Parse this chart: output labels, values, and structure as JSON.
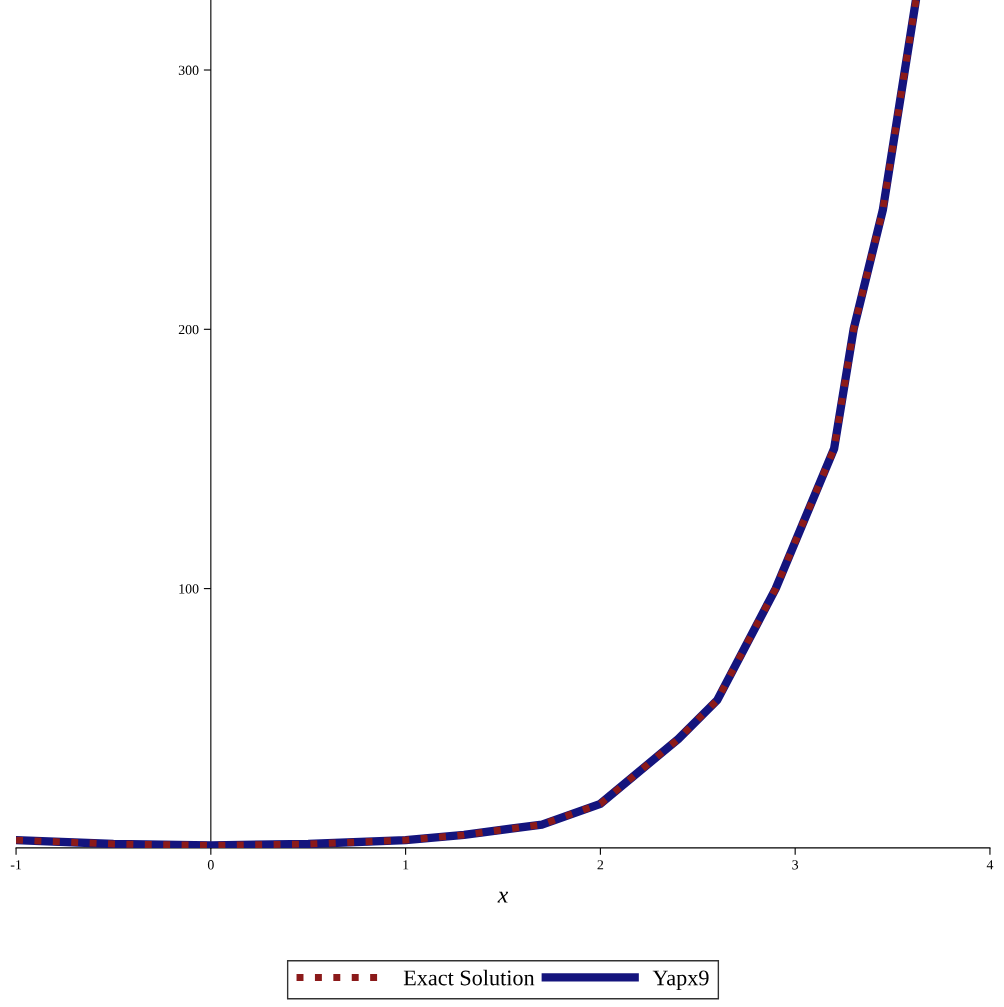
{
  "chart_data": {
    "type": "line",
    "xlabel": "x",
    "x": [
      -1,
      -0.5,
      0,
      0.5,
      1,
      1.3,
      1.7,
      2,
      2.4,
      2.6,
      2.9,
      3.2,
      3.3,
      3.45,
      3.62
    ],
    "series": [
      {
        "name": "Exact Solution",
        "color": "#8b1a1a",
        "line_style": "dotted",
        "values": [
          3,
          1.5,
          1,
          1.5,
          3,
          5,
          9,
          17,
          42,
          57,
          100,
          154,
          200,
          246,
          327
        ]
      },
      {
        "name": "Yapx9",
        "color": "#14147d",
        "line_style": "solid",
        "values": [
          3,
          1.5,
          1,
          1.5,
          3,
          5,
          9,
          17,
          42,
          57,
          100,
          154,
          200,
          246,
          327
        ]
      }
    ],
    "xlim": [
      -1,
      4
    ],
    "xticks": [
      -1,
      0,
      1,
      2,
      3,
      4
    ],
    "ylim": [
      0,
      327
    ],
    "yticks": [
      100,
      200,
      300
    ],
    "grid": false,
    "legend": "bottom",
    "marker": "none"
  }
}
